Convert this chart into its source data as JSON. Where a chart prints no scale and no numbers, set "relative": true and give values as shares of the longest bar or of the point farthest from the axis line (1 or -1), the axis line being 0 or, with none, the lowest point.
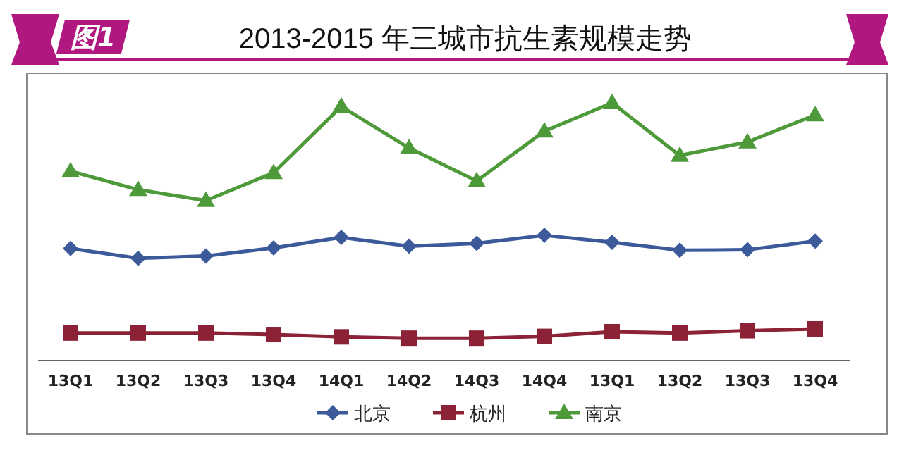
{
  "chart_data": {
    "type": "line",
    "relative": true,
    "title": "2013-2015 年三城市抗生素规模走势",
    "annotations": [
      "图1"
    ],
    "categories": [
      "13Q1",
      "13Q2",
      "13Q3",
      "13Q4",
      "14Q1",
      "14Q2",
      "14Q3",
      "14Q4",
      "13Q1",
      "13Q2",
      "13Q3",
      "13Q4"
    ],
    "series": [
      {
        "name": "北京",
        "color": "#3c5a9a",
        "marker": "diamond",
        "values": [
          0.435,
          0.397,
          0.406,
          0.437,
          0.478,
          0.444,
          0.455,
          0.486,
          0.459,
          0.428,
          0.43,
          0.464
        ]
      },
      {
        "name": "杭州",
        "color": "#8b2235",
        "marker": "square",
        "values": [
          0.107,
          0.107,
          0.107,
          0.101,
          0.092,
          0.087,
          0.087,
          0.094,
          0.112,
          0.107,
          0.116,
          0.123
        ]
      },
      {
        "name": "南京",
        "color": "#4e9a3a",
        "marker": "triangle",
        "values": [
          0.735,
          0.663,
          0.621,
          0.729,
          0.986,
          0.825,
          0.697,
          0.89,
          1,
          0.796,
          0.848,
          0.953
        ]
      }
    ],
    "legend": "bottom"
  }
}
